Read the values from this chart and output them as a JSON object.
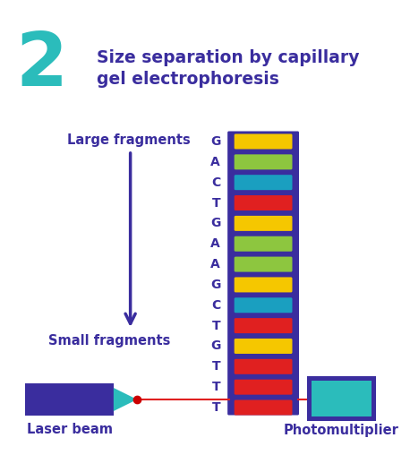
{
  "title_number": "2",
  "title_number_color": "#2bbcbb",
  "title_text": "Size separation by capillary\ngel electrophoresis",
  "title_color": "#3a2d9e",
  "background_color": "#ffffff",
  "arrow_color": "#3a2d9e",
  "label_large": "Large fragments",
  "label_small": "Small fragments",
  "label_laser": "Laser beam",
  "label_photomult": "Photomultiplier",
  "label_color": "#3a2d9e",
  "gel_color": "#3a2d9e",
  "nucleotides": [
    "G",
    "A",
    "C",
    "T",
    "G",
    "A",
    "A",
    "G",
    "C",
    "T",
    "G",
    "T",
    "T",
    "T"
  ],
  "band_colors": [
    "#f5c700",
    "#8dc63f",
    "#1a9fc0",
    "#e02020",
    "#f5c700",
    "#8dc63f",
    "#8dc63f",
    "#f5c700",
    "#1a9fc0",
    "#e02020",
    "#f5c700",
    "#e02020",
    "#e02020",
    "#e02020"
  ],
  "laser_box_color": "#3a2d9e",
  "laser_tip_color": "#2bbcbb",
  "laser_beam_color": "#e02020",
  "photomult_outer_color": "#3a2d9e",
  "photomult_inner_color": "#2bbcbb",
  "nuc_color": "#3a2d9e"
}
